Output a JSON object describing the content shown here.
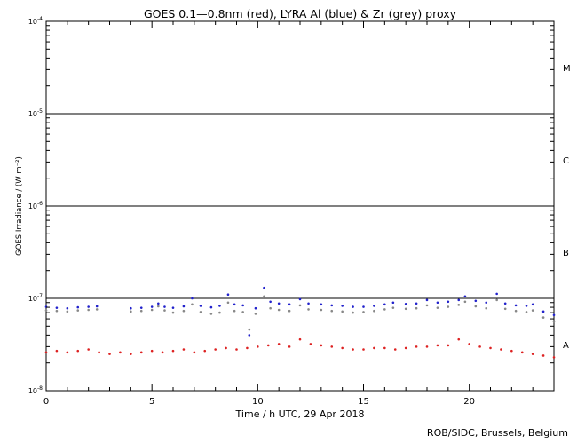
{
  "chart_data": {
    "type": "scatter",
    "title": "GOES 0.1—0.8nm (red), LYRA Al (blue) & Zr (grey) proxy",
    "xlabel": "Time / h UTC, 29 Apr 2018",
    "ylabel": "GOES Irradiance / (W m⁻²)",
    "xlim": [
      0,
      24
    ],
    "ylim_log10": [
      -8,
      -4
    ],
    "log_scale_y": true,
    "x_ticks": [
      0,
      5,
      10,
      15,
      20
    ],
    "y_ticks": [
      {
        "value": 1e-08,
        "base": "10",
        "exp": "-8"
      },
      {
        "value": 1e-07,
        "base": "10",
        "exp": "-7"
      },
      {
        "value": 1e-06,
        "base": "10",
        "exp": "-6"
      },
      {
        "value": 1e-05,
        "base": "10",
        "exp": "-5"
      },
      {
        "value": 0.0001,
        "base": "10",
        "exp": "-4"
      }
    ],
    "flare_class_lines": [
      1e-07,
      1e-06,
      1e-05
    ],
    "flare_classes": [
      {
        "label": "A",
        "center": 3.16e-08
      },
      {
        "label": "B",
        "center": 3.16e-07
      },
      {
        "label": "C",
        "center": 3.16e-06
      },
      {
        "label": "M",
        "center": 3.16e-05
      }
    ],
    "series": [
      {
        "color": "#2222cc",
        "points": [
          [
            0.0,
            8.1e-08
          ],
          [
            0.5,
            7.9e-08
          ],
          [
            1.0,
            7.8e-08
          ],
          [
            1.5,
            8e-08
          ],
          [
            2.0,
            8.1e-08
          ],
          [
            2.4,
            8.2e-08
          ],
          [
            4.0,
            7.8e-08
          ],
          [
            4.5,
            7.9e-08
          ],
          [
            5.0,
            8.1e-08
          ],
          [
            5.3,
            8.8e-08
          ],
          [
            5.6,
            8.1e-08
          ],
          [
            6.0,
            7.9e-08
          ],
          [
            6.5,
            8.2e-08
          ],
          [
            6.9,
            1e-07
          ],
          [
            7.3,
            8.3e-08
          ],
          [
            7.8,
            8e-08
          ],
          [
            8.2,
            8.3e-08
          ],
          [
            8.6,
            1.1e-07
          ],
          [
            8.9,
            8.6e-08
          ],
          [
            9.3,
            8.4e-08
          ],
          [
            9.6,
            4e-08
          ],
          [
            9.9,
            7.8e-08
          ],
          [
            10.3,
            1.3e-07
          ],
          [
            10.6,
            9.2e-08
          ],
          [
            11.0,
            8.8e-08
          ],
          [
            11.5,
            8.6e-08
          ],
          [
            12.0,
            9.8e-08
          ],
          [
            12.4,
            8.8e-08
          ],
          [
            13.0,
            8.6e-08
          ],
          [
            13.5,
            8.4e-08
          ],
          [
            14.0,
            8.3e-08
          ],
          [
            14.5,
            8.1e-08
          ],
          [
            15.0,
            8.1e-08
          ],
          [
            15.5,
            8.3e-08
          ],
          [
            16.0,
            8.6e-08
          ],
          [
            16.4,
            9e-08
          ],
          [
            17.0,
            8.7e-08
          ],
          [
            17.5,
            8.8e-08
          ],
          [
            18.0,
            9.6e-08
          ],
          [
            18.5,
            9e-08
          ],
          [
            19.0,
            9.2e-08
          ],
          [
            19.5,
            9.6e-08
          ],
          [
            19.8,
            1.05e-07
          ],
          [
            20.3,
            9.4e-08
          ],
          [
            20.8,
            9e-08
          ],
          [
            21.3,
            1.12e-07
          ],
          [
            21.7,
            8.8e-08
          ],
          [
            22.2,
            8.4e-08
          ],
          [
            22.7,
            8.3e-08
          ],
          [
            23.0,
            8.6e-08
          ],
          [
            23.5,
            7.2e-08
          ],
          [
            24.0,
            6.6e-08
          ]
        ]
      },
      {
        "color": "#888888",
        "points": [
          [
            0.0,
            7.4e-08
          ],
          [
            0.5,
            7.3e-08
          ],
          [
            1.0,
            7.2e-08
          ],
          [
            1.5,
            7.4e-08
          ],
          [
            2.0,
            7.5e-08
          ],
          [
            2.4,
            7.6e-08
          ],
          [
            4.0,
            7.2e-08
          ],
          [
            4.5,
            7.3e-08
          ],
          [
            5.0,
            7.5e-08
          ],
          [
            5.3,
            8.2e-08
          ],
          [
            5.6,
            7.4e-08
          ],
          [
            6.0,
            7e-08
          ],
          [
            6.5,
            7.3e-08
          ],
          [
            6.9,
            8.6e-08
          ],
          [
            7.3,
            7.1e-08
          ],
          [
            7.8,
            6.8e-08
          ],
          [
            8.2,
            7e-08
          ],
          [
            8.6,
            9e-08
          ],
          [
            8.9,
            7.3e-08
          ],
          [
            9.3,
            7.1e-08
          ],
          [
            9.6,
            4.6e-08
          ],
          [
            9.9,
            6.8e-08
          ],
          [
            10.3,
            1.05e-07
          ],
          [
            10.6,
            7.8e-08
          ],
          [
            11.0,
            7.5e-08
          ],
          [
            11.5,
            7.3e-08
          ],
          [
            12.0,
            8.4e-08
          ],
          [
            12.4,
            7.6e-08
          ],
          [
            13.0,
            7.5e-08
          ],
          [
            13.5,
            7.3e-08
          ],
          [
            14.0,
            7.2e-08
          ],
          [
            14.5,
            7e-08
          ],
          [
            15.0,
            7.1e-08
          ],
          [
            15.5,
            7.3e-08
          ],
          [
            16.0,
            7.6e-08
          ],
          [
            16.4,
            7.9e-08
          ],
          [
            17.0,
            7.7e-08
          ],
          [
            17.5,
            7.8e-08
          ],
          [
            18.0,
            8.4e-08
          ],
          [
            18.5,
            7.9e-08
          ],
          [
            19.0,
            8.1e-08
          ],
          [
            19.5,
            8.5e-08
          ],
          [
            19.8,
            9.2e-08
          ],
          [
            20.3,
            8.2e-08
          ],
          [
            20.8,
            7.8e-08
          ],
          [
            21.3,
            9.6e-08
          ],
          [
            21.7,
            7.7e-08
          ],
          [
            22.2,
            7.3e-08
          ],
          [
            22.7,
            7.1e-08
          ],
          [
            23.0,
            7.4e-08
          ],
          [
            23.5,
            6.2e-08
          ],
          [
            24.0,
            5.6e-08
          ]
        ]
      },
      {
        "color": "#dd2222",
        "points": [
          [
            0.0,
            2.6e-08
          ],
          [
            0.5,
            2.7e-08
          ],
          [
            1.0,
            2.6e-08
          ],
          [
            1.5,
            2.7e-08
          ],
          [
            2.0,
            2.8e-08
          ],
          [
            2.5,
            2.6e-08
          ],
          [
            3.0,
            2.5e-08
          ],
          [
            3.5,
            2.6e-08
          ],
          [
            4.0,
            2.5e-08
          ],
          [
            4.5,
            2.6e-08
          ],
          [
            5.0,
            2.7e-08
          ],
          [
            5.5,
            2.6e-08
          ],
          [
            6.0,
            2.7e-08
          ],
          [
            6.5,
            2.8e-08
          ],
          [
            7.0,
            2.6e-08
          ],
          [
            7.5,
            2.7e-08
          ],
          [
            8.0,
            2.8e-08
          ],
          [
            8.5,
            2.9e-08
          ],
          [
            9.0,
            2.8e-08
          ],
          [
            9.5,
            2.9e-08
          ],
          [
            10.0,
            3e-08
          ],
          [
            10.5,
            3.1e-08
          ],
          [
            11.0,
            3.2e-08
          ],
          [
            11.5,
            3e-08
          ],
          [
            12.0,
            3.6e-08
          ],
          [
            12.5,
            3.2e-08
          ],
          [
            13.0,
            3.1e-08
          ],
          [
            13.5,
            3e-08
          ],
          [
            14.0,
            2.9e-08
          ],
          [
            14.5,
            2.8e-08
          ],
          [
            15.0,
            2.8e-08
          ],
          [
            15.5,
            2.9e-08
          ],
          [
            16.0,
            2.9e-08
          ],
          [
            16.5,
            2.8e-08
          ],
          [
            17.0,
            2.9e-08
          ],
          [
            17.5,
            3e-08
          ],
          [
            18.0,
            3e-08
          ],
          [
            18.5,
            3.1e-08
          ],
          [
            19.0,
            3.1e-08
          ],
          [
            19.5,
            3.6e-08
          ],
          [
            20.0,
            3.2e-08
          ],
          [
            20.5,
            3e-08
          ],
          [
            21.0,
            2.9e-08
          ],
          [
            21.5,
            2.8e-08
          ],
          [
            22.0,
            2.7e-08
          ],
          [
            22.5,
            2.6e-08
          ],
          [
            23.0,
            2.5e-08
          ],
          [
            23.5,
            2.4e-08
          ],
          [
            24.0,
            2.3e-08
          ]
        ]
      }
    ]
  },
  "credit": "ROB/SIDC, Brussels, Belgium"
}
